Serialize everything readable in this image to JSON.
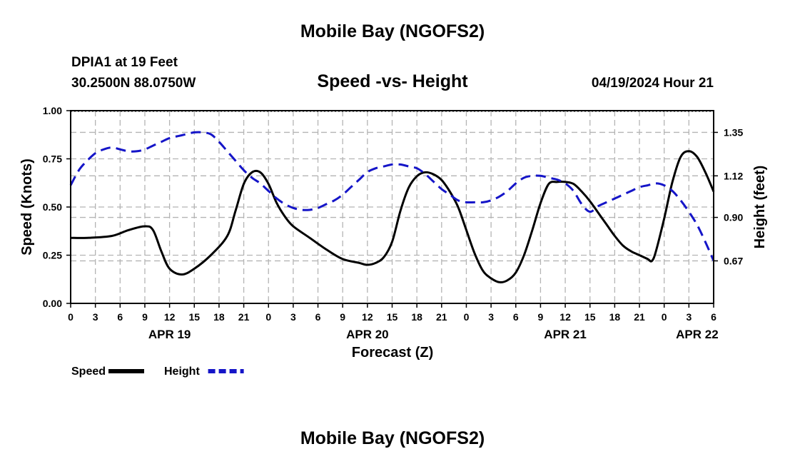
{
  "header": {
    "title": "Mobile Bay (NGOFS2)",
    "station": "DPIA1 at 19 Feet",
    "coordinates": "30.2500N  88.0750W",
    "subtitle": "Speed -vs- Height",
    "timestamp": "04/19/2024 Hour 21"
  },
  "footer": {
    "title": "Mobile Bay (NGOFS2)"
  },
  "chart_data": {
    "type": "line",
    "xlabel": "Forecast (Z)",
    "ylabel_left": "Speed (Knots)",
    "ylabel_right": "Height (feet)",
    "x_range_hours": [
      0,
      78
    ],
    "x_tick_step_hours": 3,
    "x_tick_labels": [
      "0",
      "3",
      "6",
      "9",
      "12",
      "15",
      "18",
      "21",
      "0",
      "3",
      "6",
      "9",
      "12",
      "15",
      "18",
      "21",
      "0",
      "3",
      "6",
      "9",
      "12",
      "15",
      "18",
      "21",
      "0",
      "3",
      "6"
    ],
    "day_labels": [
      {
        "label": "APR 19",
        "hour": 12
      },
      {
        "label": "APR 20",
        "hour": 36
      },
      {
        "label": "APR 21",
        "hour": 60
      },
      {
        "label": "APR 22",
        "hour": 76
      }
    ],
    "left_axis": {
      "range": [
        0,
        1.0
      ],
      "ticks": [
        0,
        0.25,
        0.5,
        0.75,
        1.0
      ],
      "tick_labels": [
        "0.00",
        "0.25",
        "0.50",
        "0.75",
        "1.00"
      ]
    },
    "right_axis": {
      "range": [
        0.445,
        1.465
      ],
      "ticks": [
        0.67,
        0.9,
        1.12,
        1.35
      ],
      "tick_labels": [
        "0.67",
        "0.90",
        "1.12",
        "1.35"
      ]
    },
    "series": [
      {
        "name": "Speed",
        "axis": "left",
        "color": "#000000",
        "dashed": false,
        "points": [
          [
            0,
            0.34
          ],
          [
            2,
            0.34
          ],
          [
            5,
            0.35
          ],
          [
            7,
            0.38
          ],
          [
            9,
            0.4
          ],
          [
            10,
            0.38
          ],
          [
            11,
            0.27
          ],
          [
            12,
            0.18
          ],
          [
            13.5,
            0.15
          ],
          [
            15,
            0.18
          ],
          [
            17,
            0.25
          ],
          [
            19,
            0.35
          ],
          [
            20,
            0.48
          ],
          [
            21,
            0.62
          ],
          [
            22,
            0.68
          ],
          [
            23,
            0.68
          ],
          [
            24,
            0.62
          ],
          [
            25,
            0.52
          ],
          [
            26,
            0.45
          ],
          [
            27,
            0.4
          ],
          [
            29,
            0.34
          ],
          [
            31,
            0.28
          ],
          [
            33,
            0.23
          ],
          [
            35,
            0.21
          ],
          [
            36,
            0.2
          ],
          [
            37,
            0.21
          ],
          [
            38,
            0.24
          ],
          [
            39,
            0.32
          ],
          [
            40,
            0.48
          ],
          [
            41,
            0.6
          ],
          [
            42,
            0.66
          ],
          [
            43,
            0.68
          ],
          [
            44,
            0.67
          ],
          [
            45,
            0.64
          ],
          [
            46,
            0.58
          ],
          [
            47,
            0.5
          ],
          [
            48,
            0.38
          ],
          [
            49,
            0.26
          ],
          [
            50,
            0.17
          ],
          [
            51,
            0.13
          ],
          [
            52,
            0.11
          ],
          [
            53,
            0.12
          ],
          [
            54,
            0.16
          ],
          [
            55,
            0.25
          ],
          [
            56,
            0.38
          ],
          [
            57,
            0.52
          ],
          [
            58,
            0.62
          ],
          [
            59,
            0.63
          ],
          [
            60,
            0.63
          ],
          [
            61,
            0.62
          ],
          [
            62,
            0.58
          ],
          [
            63,
            0.53
          ],
          [
            64,
            0.47
          ],
          [
            65,
            0.41
          ],
          [
            66,
            0.35
          ],
          [
            67,
            0.3
          ],
          [
            68,
            0.27
          ],
          [
            69,
            0.25
          ],
          [
            70,
            0.23
          ],
          [
            70.5,
            0.22
          ],
          [
            71,
            0.27
          ],
          [
            72,
            0.44
          ],
          [
            73,
            0.63
          ],
          [
            74,
            0.76
          ],
          [
            75,
            0.79
          ],
          [
            76,
            0.76
          ],
          [
            77,
            0.68
          ],
          [
            78,
            0.58
          ]
        ]
      },
      {
        "name": "Height",
        "axis": "right",
        "color": "#1515c8",
        "dashed": true,
        "points": [
          [
            0,
            1.07
          ],
          [
            1,
            1.15
          ],
          [
            2,
            1.2
          ],
          [
            3,
            1.24
          ],
          [
            4,
            1.26
          ],
          [
            5,
            1.27
          ],
          [
            6,
            1.26
          ],
          [
            7,
            1.25
          ],
          [
            8,
            1.25
          ],
          [
            9,
            1.26
          ],
          [
            10,
            1.28
          ],
          [
            11,
            1.3
          ],
          [
            12,
            1.32
          ],
          [
            13,
            1.33
          ],
          [
            14,
            1.34
          ],
          [
            15,
            1.35
          ],
          [
            16,
            1.35
          ],
          [
            17,
            1.34
          ],
          [
            18,
            1.3
          ],
          [
            19,
            1.25
          ],
          [
            20,
            1.2
          ],
          [
            21,
            1.15
          ],
          [
            22,
            1.11
          ],
          [
            23,
            1.08
          ],
          [
            24,
            1.04
          ],
          [
            25,
            1.0
          ],
          [
            26,
            0.97
          ],
          [
            27,
            0.95
          ],
          [
            28,
            0.94
          ],
          [
            29,
            0.94
          ],
          [
            30,
            0.95
          ],
          [
            31,
            0.97
          ],
          [
            32,
            0.99
          ],
          [
            33,
            1.02
          ],
          [
            34,
            1.06
          ],
          [
            35,
            1.1
          ],
          [
            36,
            1.14
          ],
          [
            37,
            1.16
          ],
          [
            38,
            1.17
          ],
          [
            39,
            1.18
          ],
          [
            40,
            1.18
          ],
          [
            41,
            1.17
          ],
          [
            42,
            1.16
          ],
          [
            43,
            1.13
          ],
          [
            44,
            1.09
          ],
          [
            45,
            1.05
          ],
          [
            46,
            1.02
          ],
          [
            47,
            0.99
          ],
          [
            48,
            0.98
          ],
          [
            49,
            0.98
          ],
          [
            50,
            0.98
          ],
          [
            51,
            0.99
          ],
          [
            52,
            1.01
          ],
          [
            53,
            1.04
          ],
          [
            54,
            1.08
          ],
          [
            55,
            1.11
          ],
          [
            56,
            1.12
          ],
          [
            57,
            1.12
          ],
          [
            58,
            1.11
          ],
          [
            59,
            1.1
          ],
          [
            60,
            1.08
          ],
          [
            61,
            1.04
          ],
          [
            62,
            0.97
          ],
          [
            63,
            0.93
          ],
          [
            64,
            0.96
          ],
          [
            65,
            0.98
          ],
          [
            66,
            1.0
          ],
          [
            67,
            1.02
          ],
          [
            68,
            1.04
          ],
          [
            69,
            1.06
          ],
          [
            70,
            1.07
          ],
          [
            71,
            1.08
          ],
          [
            72,
            1.07
          ],
          [
            73,
            1.04
          ],
          [
            74,
            0.99
          ],
          [
            75,
            0.93
          ],
          [
            76,
            0.86
          ],
          [
            77,
            0.77
          ],
          [
            78,
            0.67
          ]
        ]
      }
    ],
    "legend": [
      {
        "label": "Speed",
        "color": "#000000",
        "dashed": false
      },
      {
        "label": "Height",
        "color": "#1515c8",
        "dashed": true
      }
    ],
    "grid": true
  }
}
